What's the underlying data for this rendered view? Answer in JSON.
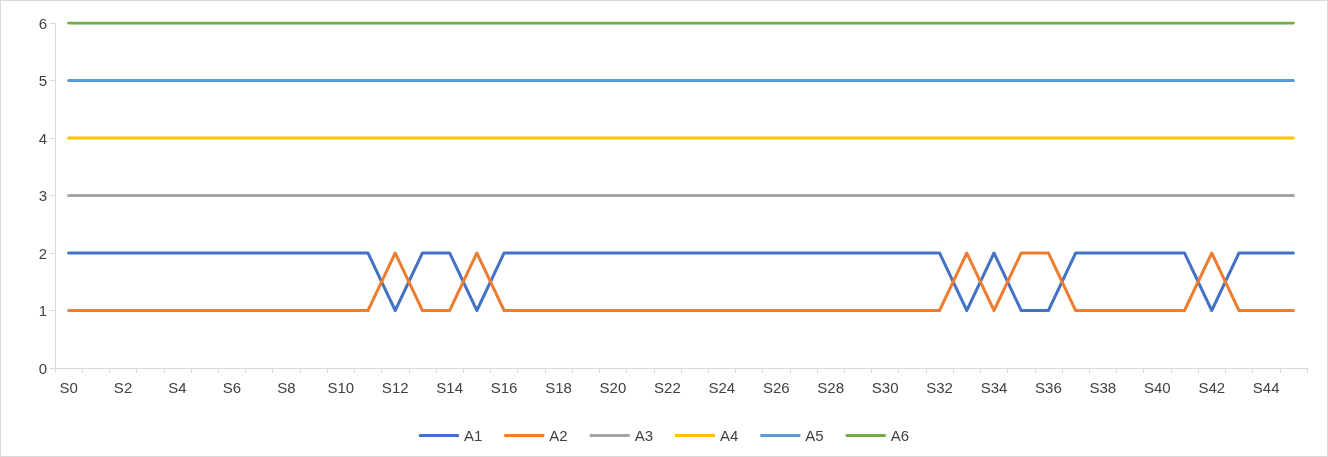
{
  "chart_data": {
    "type": "line",
    "categories": [
      "S0",
      null,
      "S2",
      null,
      "S4",
      null,
      "S6",
      null,
      "S8",
      null,
      "S10",
      null,
      "S12",
      null,
      "S14",
      null,
      "S16",
      null,
      "S18",
      null,
      "S20",
      null,
      "S22",
      null,
      "S24",
      null,
      "S26",
      null,
      "S28",
      null,
      "S30",
      null,
      "S32",
      null,
      "S34",
      null,
      "S36",
      null,
      "S38",
      null,
      "S40",
      null,
      "S42",
      null,
      "S44",
      null
    ],
    "series": [
      {
        "name": "A1",
        "color": "#4472c4",
        "values": [
          2,
          2,
          2,
          2,
          2,
          2,
          2,
          2,
          2,
          2,
          2,
          2,
          1,
          2,
          2,
          1,
          2,
          2,
          2,
          2,
          2,
          2,
          2,
          2,
          2,
          2,
          2,
          2,
          2,
          2,
          2,
          2,
          2,
          1,
          2,
          1,
          1,
          2,
          2,
          2,
          2,
          2,
          1,
          2,
          2,
          2
        ]
      },
      {
        "name": "A2",
        "color": "#ed7d31",
        "values": [
          1,
          1,
          1,
          1,
          1,
          1,
          1,
          1,
          1,
          1,
          1,
          1,
          2,
          1,
          1,
          2,
          1,
          1,
          1,
          1,
          1,
          1,
          1,
          1,
          1,
          1,
          1,
          1,
          1,
          1,
          1,
          1,
          1,
          2,
          1,
          2,
          2,
          1,
          1,
          1,
          1,
          1,
          2,
          1,
          1,
          1
        ]
      },
      {
        "name": "A3",
        "color": "#a5a5a5",
        "values": [
          3,
          3,
          3,
          3,
          3,
          3,
          3,
          3,
          3,
          3,
          3,
          3,
          3,
          3,
          3,
          3,
          3,
          3,
          3,
          3,
          3,
          3,
          3,
          3,
          3,
          3,
          3,
          3,
          3,
          3,
          3,
          3,
          3,
          3,
          3,
          3,
          3,
          3,
          3,
          3,
          3,
          3,
          3,
          3,
          3,
          3
        ]
      },
      {
        "name": "A4",
        "color": "#ffc000",
        "values": [
          4,
          4,
          4,
          4,
          4,
          4,
          4,
          4,
          4,
          4,
          4,
          4,
          4,
          4,
          4,
          4,
          4,
          4,
          4,
          4,
          4,
          4,
          4,
          4,
          4,
          4,
          4,
          4,
          4,
          4,
          4,
          4,
          4,
          4,
          4,
          4,
          4,
          4,
          4,
          4,
          4,
          4,
          4,
          4,
          4,
          4
        ]
      },
      {
        "name": "A5",
        "color": "#5b9bd5",
        "values": [
          5,
          5,
          5,
          5,
          5,
          5,
          5,
          5,
          5,
          5,
          5,
          5,
          5,
          5,
          5,
          5,
          5,
          5,
          5,
          5,
          5,
          5,
          5,
          5,
          5,
          5,
          5,
          5,
          5,
          5,
          5,
          5,
          5,
          5,
          5,
          5,
          5,
          5,
          5,
          5,
          5,
          5,
          5,
          5,
          5,
          5
        ]
      },
      {
        "name": "A6",
        "color": "#70ad47",
        "values": [
          6,
          6,
          6,
          6,
          6,
          6,
          6,
          6,
          6,
          6,
          6,
          6,
          6,
          6,
          6,
          6,
          6,
          6,
          6,
          6,
          6,
          6,
          6,
          6,
          6,
          6,
          6,
          6,
          6,
          6,
          6,
          6,
          6,
          6,
          6,
          6,
          6,
          6,
          6,
          6,
          6,
          6,
          6,
          6,
          6,
          6
        ]
      }
    ],
    "ylim": [
      0,
      6
    ],
    "yticks": [
      0,
      1,
      2,
      3,
      4,
      5,
      6
    ],
    "grid": false,
    "legend": "bottom",
    "marker": "none",
    "line_style": "solid"
  }
}
